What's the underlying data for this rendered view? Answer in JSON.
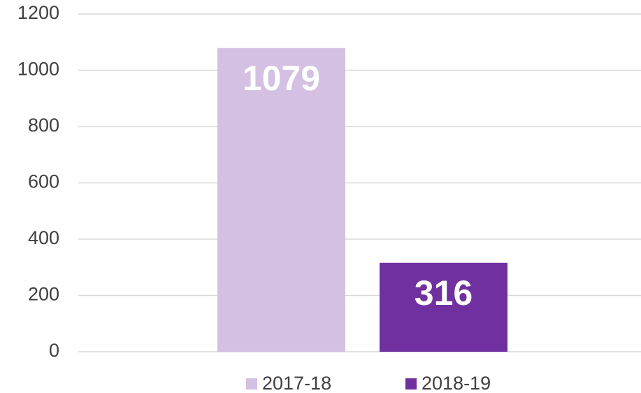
{
  "chart_data": {
    "type": "bar",
    "categories": [
      null
    ],
    "series": [
      {
        "name": "2017-18",
        "color": "#d4c0e3",
        "values": [
          1079
        ]
      },
      {
        "name": "2018-19",
        "color": "#7030a0",
        "values": [
          316
        ]
      }
    ],
    "ylim": [
      0,
      1200
    ],
    "yticks": [
      0,
      200,
      400,
      600,
      800,
      1000,
      1200
    ],
    "grid": true,
    "legend": "bottom",
    "data_labels": true
  }
}
